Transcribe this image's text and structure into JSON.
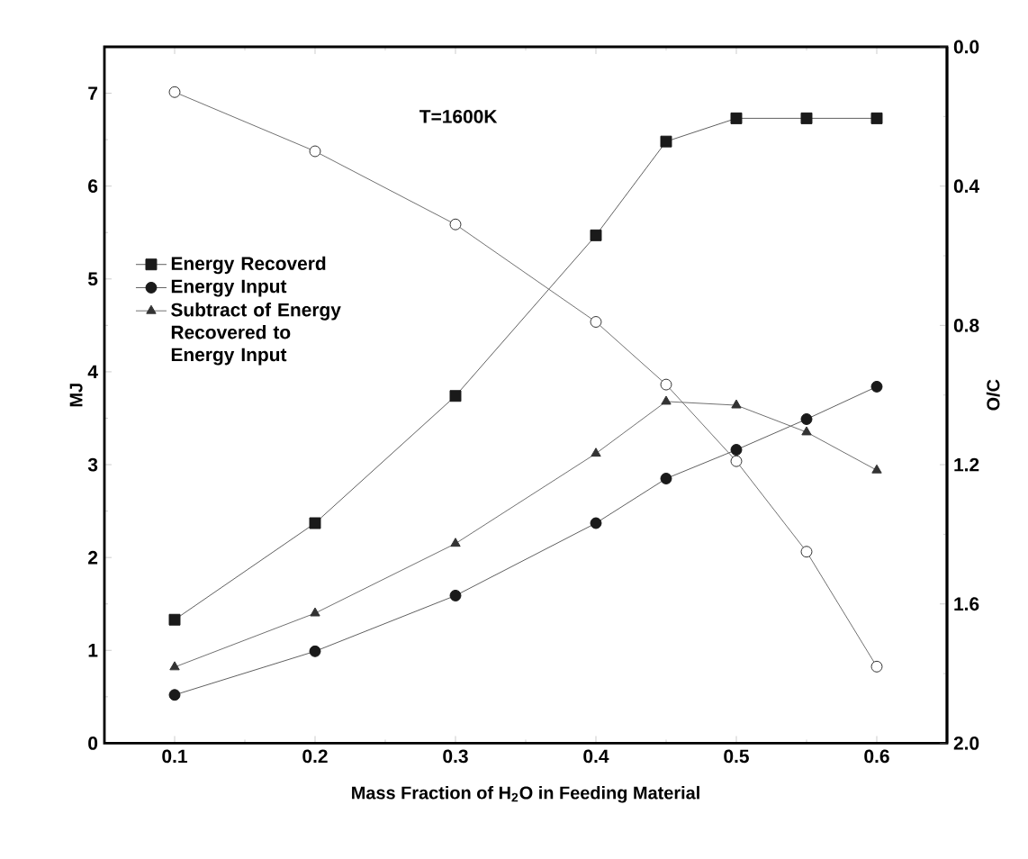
{
  "chart_data": {
    "type": "line",
    "xlabel": "Mass Fraction of H$_{2}$O in Feeding Material",
    "ylabel": "MJ",
    "y2label": "O/C",
    "annotations": [
      "T=1600K"
    ],
    "x": [
      0.1,
      0.2,
      0.3,
      0.4,
      0.45,
      0.5,
      0.55,
      0.6
    ],
    "series": [
      {
        "name": "Energy Recoverd",
        "color": "#1a1a1a",
        "marker": "square",
        "values": [
          1.33,
          2.37,
          3.74,
          5.47,
          6.48,
          6.73,
          6.73,
          6.73
        ]
      },
      {
        "name": "Energy Input",
        "color": "#1a1a1a",
        "marker": "circle",
        "values": [
          0.52,
          0.99,
          1.59,
          2.37,
          2.85,
          3.16,
          3.49,
          3.84
        ]
      },
      {
        "name": "Subtract of Energy Recovered to Energy Input",
        "color": "#333333",
        "marker": "triangle",
        "values": [
          0.82,
          1.4,
          2.15,
          3.12,
          3.68,
          3.64,
          3.35,
          2.94
        ]
      },
      {
        "axis": "y2",
        "color": "#333333",
        "marker": "circle",
        "values": [
          0.13,
          0.3,
          0.51,
          0.79,
          0.97,
          1.19,
          1.45,
          1.78
        ]
      }
    ],
    "xlim": [
      0.05,
      0.65
    ],
    "xticks": [
      0.1,
      0.2,
      0.3,
      0.4,
      0.5,
      0.6
    ],
    "ylim": [
      0,
      7.5
    ],
    "yticks": [
      0,
      1,
      2,
      3,
      4,
      5,
      6,
      7
    ],
    "y2lim": [
      2.0,
      0.0
    ],
    "y2ticks": [
      {
        "value": 0.0,
        "label": "0.0"
      },
      0.4,
      0.8,
      1.2,
      1.6,
      {
        "value": 2.0,
        "label": "2.0"
      }
    ],
    "legend": "left",
    "line_style": "solid"
  }
}
